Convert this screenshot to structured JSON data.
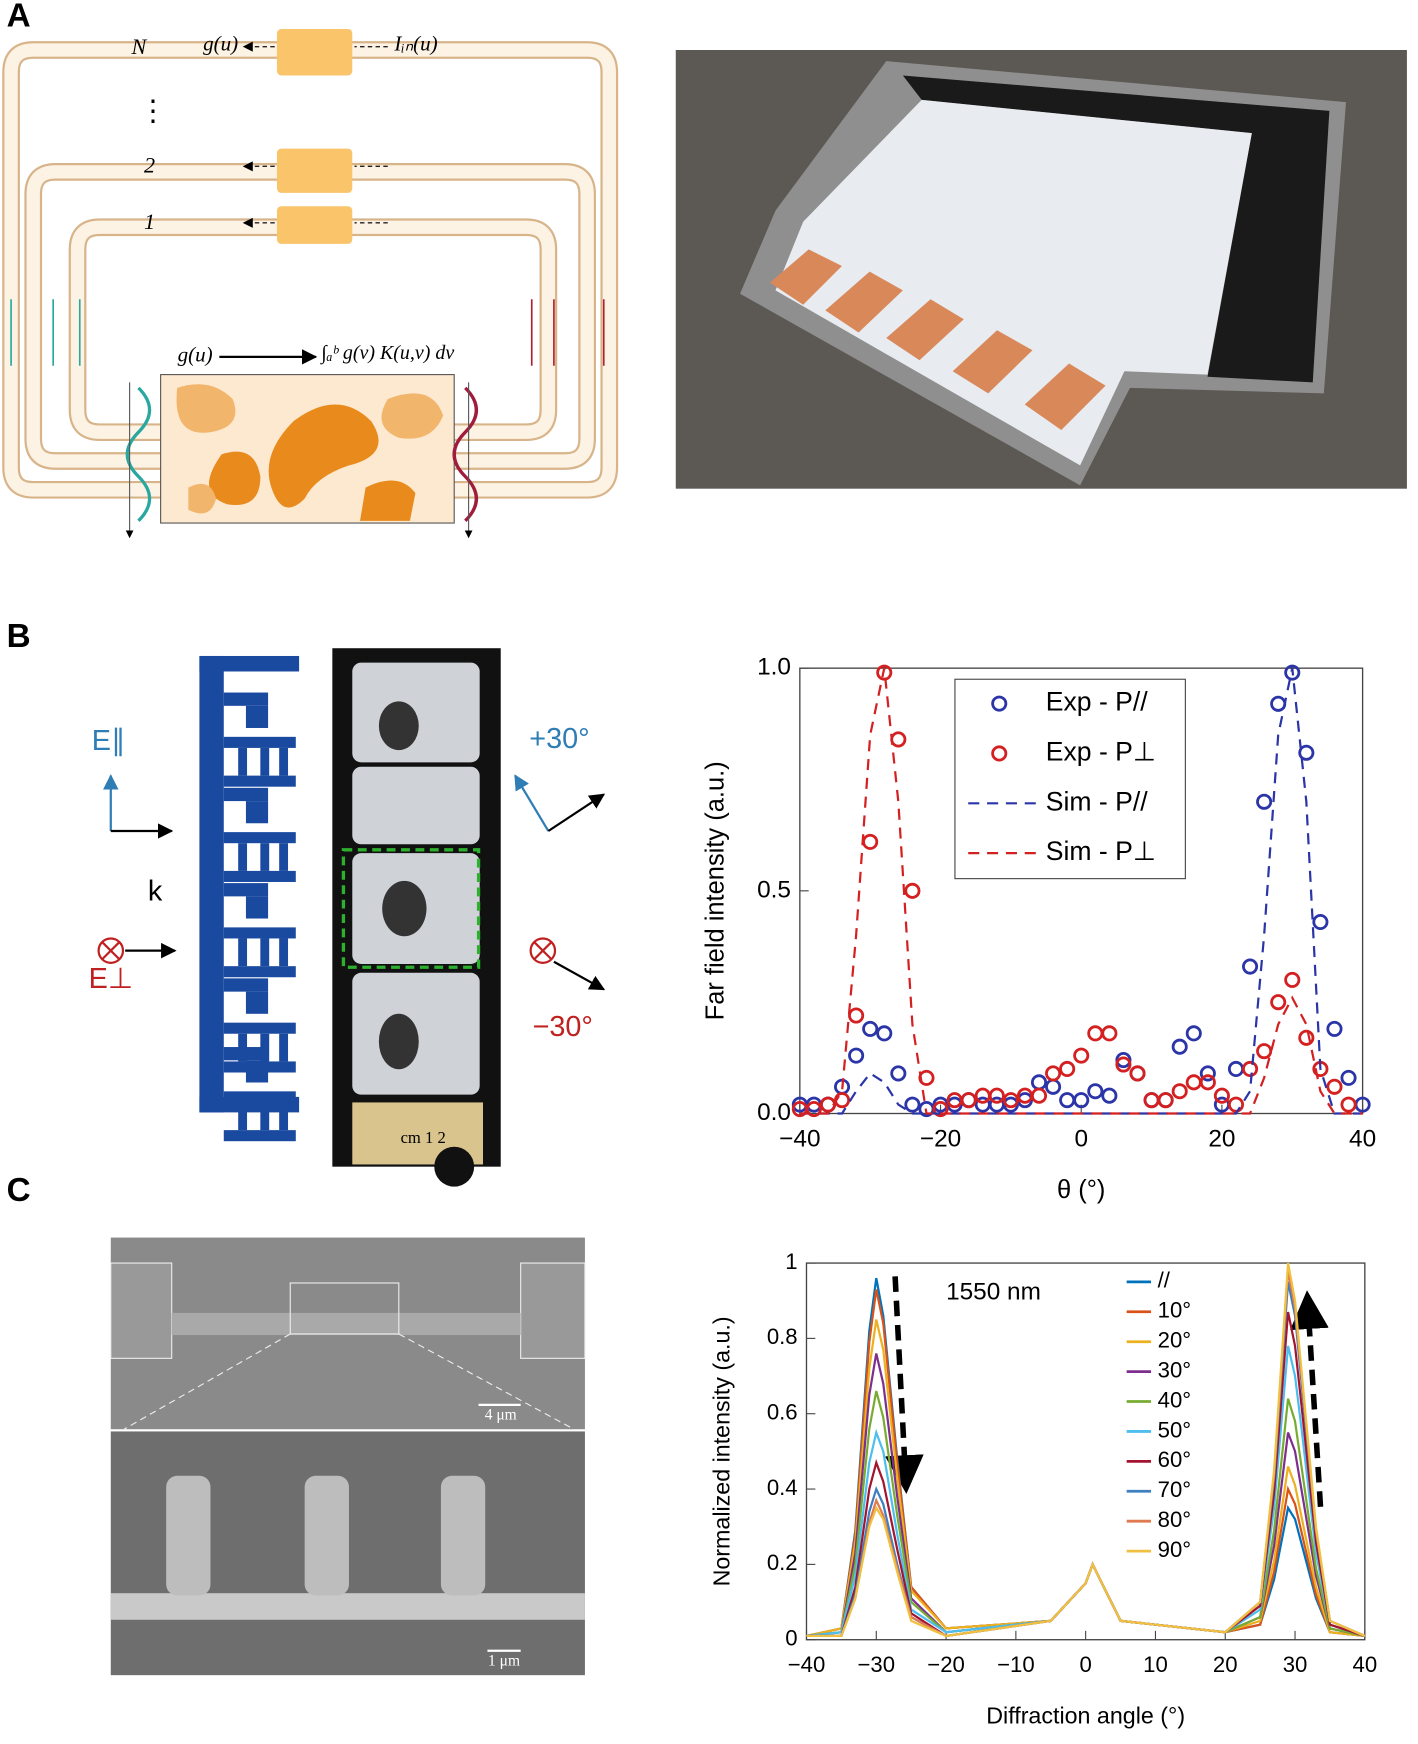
{
  "panel_labels": [
    "A",
    "B",
    "C"
  ],
  "diagram": {
    "loop_labels": [
      "N",
      "⋮",
      "2",
      "1"
    ],
    "output": "g(u)",
    "input": "Iᵢₙ(u)",
    "mapping_input": "g(u)",
    "mapping_output": "∫ₐᵇ g(v) K(u,v) dv"
  },
  "structure": {
    "e_par": "E∥",
    "k": "k",
    "e_perp": "E⊥",
    "plus_angle": "+30°",
    "minus_angle": "−30°",
    "ruler": "cm 1 2"
  },
  "sem": {
    "scale_top": "4 μm",
    "scale_bottom": "1 μm"
  },
  "chart_data": [
    {
      "type": "scatter",
      "xlabel": "θ (°)",
      "ylabel": "Far field intensity (a.u.)",
      "xlim": [
        -40,
        40
      ],
      "xticks": [
        {
          "value": -40,
          "label": "−40"
        },
        {
          "value": -20,
          "label": "−20"
        },
        0,
        20,
        40
      ],
      "ylim": [
        0,
        1
      ],
      "yticks": [
        {
          "value": 0,
          "label": "0.0"
        },
        {
          "value": 0.5,
          "label": "0.5"
        },
        {
          "value": 1,
          "label": "1.0"
        }
      ],
      "grid": false,
      "legend": "upper center",
      "series": [
        {
          "name": "Exp - P//",
          "color": "#2b35a8",
          "style": "circles",
          "x": [
            -40,
            -38,
            -36,
            -34,
            -32,
            -30,
            -28,
            -26,
            -24,
            -22,
            -20,
            -18,
            -16,
            -14,
            -12,
            -10,
            -8,
            -6,
            -4,
            -2,
            0,
            2,
            4,
            6,
            8,
            10,
            12,
            14,
            16,
            18,
            20,
            22,
            24,
            26,
            28,
            30,
            32,
            34,
            36,
            38,
            40
          ],
          "values": [
            0.02,
            0.02,
            0.02,
            0.06,
            0.13,
            0.19,
            0.18,
            0.09,
            0.02,
            0.01,
            0.02,
            0.02,
            0.03,
            0.02,
            0.02,
            0.02,
            0.03,
            0.07,
            0.06,
            0.03,
            0.03,
            0.05,
            0.04,
            0.12,
            0.09,
            0.03,
            0.03,
            0.15,
            0.18,
            0.09,
            0.02,
            0.1,
            0.33,
            0.7,
            0.92,
            0.99,
            0.81,
            0.43,
            0.19,
            0.08,
            0.02
          ]
        },
        {
          "name": "Exp - P⊥",
          "color": "#d42020",
          "style": "circles",
          "x": [
            -40,
            -38,
            -36,
            -34,
            -32,
            -30,
            -28,
            -26,
            -24,
            -22,
            -20,
            -18,
            -16,
            -14,
            -12,
            -10,
            -8,
            -6,
            -4,
            -2,
            0,
            2,
            4,
            6,
            8,
            10,
            12,
            14,
            16,
            18,
            20,
            22,
            24,
            26,
            28,
            30,
            32,
            34,
            36,
            38
          ],
          "values": [
            0.01,
            0.01,
            0.02,
            0.03,
            0.22,
            0.61,
            0.99,
            0.84,
            0.5,
            0.08,
            0.01,
            0.03,
            0.03,
            0.04,
            0.04,
            0.03,
            0.04,
            0.04,
            0.09,
            0.1,
            0.13,
            0.18,
            0.18,
            0.11,
            0.09,
            0.03,
            0.03,
            0.05,
            0.07,
            0.07,
            0.04,
            0.02,
            0.1,
            0.14,
            0.25,
            0.3,
            0.17,
            0.1,
            0.06,
            0.02
          ]
        },
        {
          "name": "Sim - P//",
          "color": "#2b35a8",
          "style": "dashed",
          "x": [
            -40,
            -34,
            -32,
            -30,
            -28,
            -26,
            -24,
            0,
            22,
            24,
            26,
            28,
            30,
            32,
            34,
            36,
            40
          ],
          "values": [
            0,
            0,
            0.05,
            0.09,
            0.07,
            0.02,
            0,
            0,
            0,
            0.05,
            0.4,
            0.85,
            1.0,
            0.7,
            0.1,
            0,
            0
          ]
        },
        {
          "name": "Sim - P⊥",
          "color": "#d42020",
          "style": "dashed",
          "x": [
            -40,
            -36,
            -34,
            -32,
            -30,
            -28,
            -26,
            -24,
            -22,
            0,
            24,
            26,
            28,
            30,
            32,
            34,
            36,
            40
          ],
          "values": [
            0,
            0,
            0.05,
            0.4,
            0.85,
            1.0,
            0.7,
            0.2,
            0,
            0,
            0,
            0.08,
            0.2,
            0.26,
            0.2,
            0.05,
            0,
            0
          ]
        }
      ]
    },
    {
      "type": "line",
      "xlabel": "Diffraction angle (°)",
      "ylabel": "Normalized intensity (a.u.)",
      "annotation": "1550 nm",
      "xlim": [
        -40,
        40
      ],
      "xticks": [
        {
          "value": -40,
          "label": "−40"
        },
        {
          "value": -30,
          "label": "−30"
        },
        {
          "value": -20,
          "label": "−20"
        },
        {
          "value": -10,
          "label": "−10"
        },
        0,
        10,
        20,
        30,
        40
      ],
      "ylim": [
        0,
        1
      ],
      "yticks": [
        0,
        0.2,
        0.4,
        0.6,
        0.8,
        1
      ],
      "grid": false,
      "legend": "upper right",
      "x": [
        -40,
        -35,
        -33,
        -31,
        -30,
        -29,
        -27,
        -25,
        -20,
        -5,
        0,
        1,
        5,
        20,
        25,
        27,
        29,
        30,
        31,
        33,
        35,
        40
      ],
      "series": [
        {
          "name": "//",
          "color": "#0072bd",
          "values": [
            0.01,
            0.03,
            0.29,
            0.82,
            0.96,
            0.86,
            0.48,
            0.14,
            0.03,
            0.05,
            0.15,
            0.2,
            0.05,
            0.02,
            0.04,
            0.16,
            0.35,
            0.32,
            0.25,
            0.11,
            0.02,
            0.01
          ]
        },
        {
          "name": "10°",
          "color": "#d95319",
          "values": [
            0.01,
            0.03,
            0.28,
            0.79,
            0.93,
            0.84,
            0.47,
            0.14,
            0.03,
            0.05,
            0.15,
            0.2,
            0.05,
            0.02,
            0.04,
            0.18,
            0.4,
            0.36,
            0.28,
            0.12,
            0.02,
            0.01
          ]
        },
        {
          "name": "20°",
          "color": "#edb120",
          "values": [
            0.01,
            0.03,
            0.26,
            0.72,
            0.85,
            0.77,
            0.43,
            0.13,
            0.03,
            0.05,
            0.15,
            0.2,
            0.05,
            0.02,
            0.05,
            0.21,
            0.46,
            0.41,
            0.32,
            0.14,
            0.02,
            0.01
          ]
        },
        {
          "name": "30°",
          "color": "#7e2f8e",
          "values": [
            0.01,
            0.02,
            0.23,
            0.65,
            0.76,
            0.68,
            0.38,
            0.11,
            0.02,
            0.05,
            0.15,
            0.2,
            0.05,
            0.02,
            0.06,
            0.25,
            0.55,
            0.5,
            0.39,
            0.17,
            0.03,
            0.01
          ]
        },
        {
          "name": "40°",
          "color": "#77ac30",
          "values": [
            0.01,
            0.02,
            0.2,
            0.56,
            0.66,
            0.59,
            0.33,
            0.1,
            0.02,
            0.05,
            0.15,
            0.2,
            0.05,
            0.02,
            0.06,
            0.29,
            0.64,
            0.58,
            0.45,
            0.19,
            0.03,
            0.01
          ]
        },
        {
          "name": "50°",
          "color": "#4dbeee",
          "values": [
            0.01,
            0.02,
            0.17,
            0.47,
            0.55,
            0.5,
            0.28,
            0.08,
            0.02,
            0.05,
            0.15,
            0.2,
            0.05,
            0.02,
            0.08,
            0.35,
            0.78,
            0.7,
            0.55,
            0.23,
            0.04,
            0.01
          ]
        },
        {
          "name": "60°",
          "color": "#a2142f",
          "values": [
            0.01,
            0.01,
            0.14,
            0.4,
            0.47,
            0.42,
            0.24,
            0.07,
            0.01,
            0.05,
            0.15,
            0.2,
            0.05,
            0.02,
            0.09,
            0.39,
            0.87,
            0.78,
            0.61,
            0.26,
            0.04,
            0.01
          ]
        },
        {
          "name": "70°",
          "color": "#3d7fc0",
          "values": [
            0.01,
            0.01,
            0.12,
            0.34,
            0.4,
            0.36,
            0.2,
            0.06,
            0.01,
            0.05,
            0.15,
            0.2,
            0.05,
            0.02,
            0.1,
            0.43,
            0.95,
            0.86,
            0.67,
            0.29,
            0.05,
            0.01
          ]
        },
        {
          "name": "80°",
          "color": "#e07a50",
          "values": [
            0.01,
            0.01,
            0.11,
            0.31,
            0.37,
            0.33,
            0.19,
            0.06,
            0.01,
            0.05,
            0.15,
            0.2,
            0.05,
            0.02,
            0.1,
            0.44,
            0.98,
            0.88,
            0.69,
            0.29,
            0.05,
            0.01
          ]
        },
        {
          "name": "90°",
          "color": "#f0c040",
          "values": [
            0.01,
            0.01,
            0.11,
            0.3,
            0.35,
            0.32,
            0.18,
            0.05,
            0.01,
            0.05,
            0.15,
            0.2,
            0.05,
            0.02,
            0.1,
            0.45,
            1.0,
            0.9,
            0.7,
            0.3,
            0.05,
            0.01
          ]
        }
      ]
    }
  ]
}
